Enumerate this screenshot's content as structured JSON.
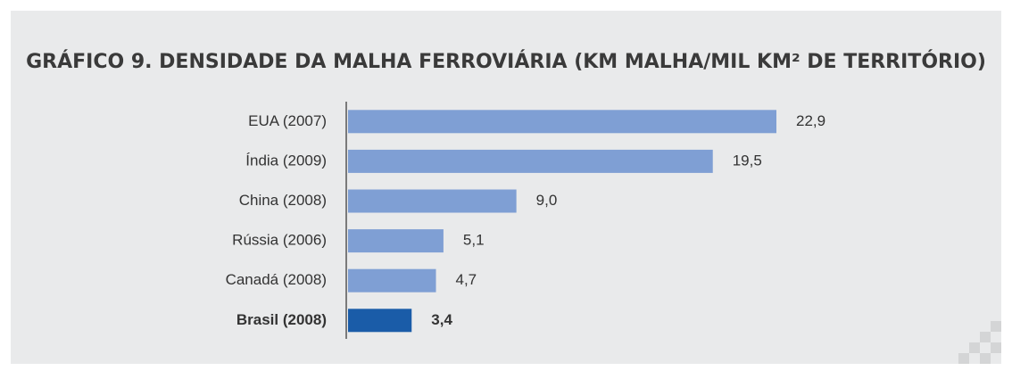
{
  "chart_data": {
    "type": "barh",
    "title": "GRÁFICO 9. DENSIDADE DA MALHA FERROVIÁRIA (KM MALHA/MIL KM² DE TERRITÓRIO)",
    "categories": [
      "EUA (2007)",
      "Índia (2009)",
      "China (2008)",
      "Rússia (2006)",
      "Canadá (2008)",
      "Brasil (2008)"
    ],
    "values": [
      22.9,
      19.5,
      9.0,
      5.1,
      4.7,
      3.4
    ],
    "value_labels": [
      "22,9",
      "19,5",
      "9,0",
      "5,1",
      "4,7",
      "3,4"
    ],
    "colors": [
      "#7f9fd4",
      "#7f9fd4",
      "#7f9fd4",
      "#7f9fd4",
      "#7f9fd4",
      "#1a5ca8"
    ]
  }
}
